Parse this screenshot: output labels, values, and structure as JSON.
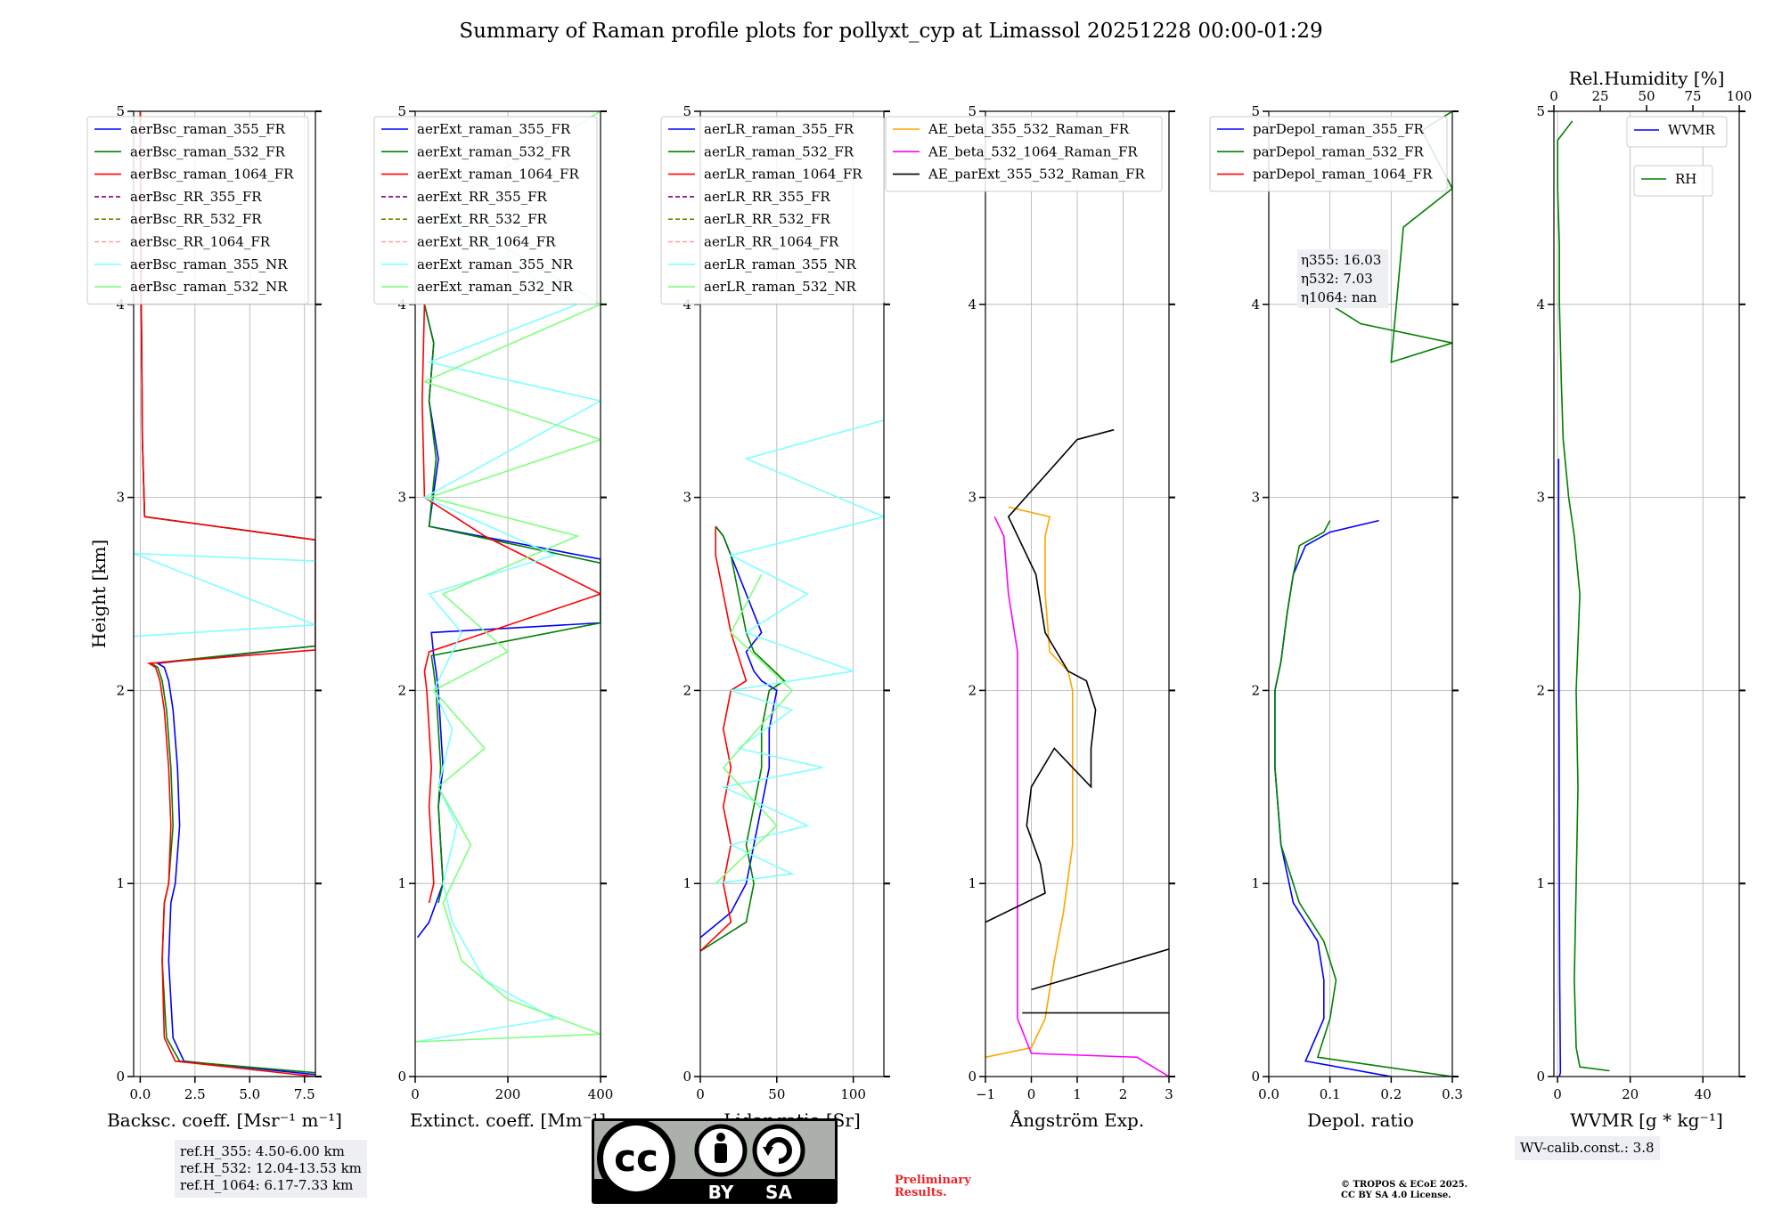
{
  "title": "Summary of Raman profile plots for pollyxt_cyp at Limassol 20251228 00:00-01:29",
  "chart_data": [
    {
      "type": "line",
      "id": "bsc",
      "xlabel": "Backsc. coeff. [Msr⁻¹ m⁻¹]",
      "ylabel": "Height [km]",
      "xlim": [
        -0.3,
        8
      ],
      "ylim": [
        0,
        5
      ],
      "xticks": [
        "0.0",
        "2.5",
        "5.0",
        "7.5"
      ],
      "xtick_values": [
        0,
        2.5,
        5,
        7.5
      ],
      "yticks": [
        "0",
        "1",
        "2",
        "3",
        "4",
        "5"
      ],
      "legend": [
        "aerBsc_raman_355_FR",
        "aerBsc_raman_532_FR",
        "aerBsc_raman_1064_FR",
        "aerBsc_RR_355_FR",
        "aerBsc_RR_532_FR",
        "aerBsc_RR_1064_FR",
        "aerBsc_raman_355_NR",
        "aerBsc_raman_532_NR"
      ],
      "series": [
        {
          "name": "aerBsc_raman_355_FR",
          "x": [
            8,
            2.0,
            1.5,
            1.3,
            1.4,
            1.6,
            1.8,
            1.7,
            1.5,
            1.3,
            1.1,
            0.8,
            8,
            8,
            0.2,
            0.1,
            0.05,
            0.0
          ],
          "y": [
            0.01,
            0.08,
            0.2,
            0.6,
            0.9,
            1.0,
            1.3,
            1.6,
            1.9,
            2.05,
            2.12,
            2.14,
            2.23,
            2.78,
            2.9,
            3.3,
            4.0,
            5.0
          ]
        },
        {
          "name": "aerBsc_raman_532_FR",
          "x": [
            8,
            1.8,
            1.2,
            1.0,
            1.1,
            1.3,
            1.5,
            1.4,
            1.2,
            1.0,
            0.8,
            0.5,
            8,
            8,
            0.2,
            0.1,
            0.05,
            0.0
          ],
          "y": [
            0.02,
            0.08,
            0.2,
            0.6,
            0.9,
            1.0,
            1.3,
            1.6,
            1.9,
            2.05,
            2.12,
            2.14,
            2.23,
            2.78,
            2.9,
            3.3,
            4.0,
            5.0
          ]
        },
        {
          "name": "aerBsc_raman_1064_FR",
          "x": [
            8,
            1.6,
            1.1,
            1.0,
            1.1,
            1.3,
            1.4,
            1.3,
            1.1,
            0.9,
            0.7,
            0.4,
            8,
            8,
            0.2,
            0.1,
            0.05,
            0.0
          ],
          "y": [
            0.0,
            0.08,
            0.2,
            0.6,
            0.9,
            1.0,
            1.3,
            1.6,
            1.9,
            2.05,
            2.12,
            2.14,
            2.21,
            2.78,
            2.9,
            3.3,
            4.0,
            5.0
          ]
        },
        {
          "name": "aerBsc_raman_355_NR",
          "x": [
            8,
            -0.3,
            8,
            -0.3
          ],
          "y": [
            2.67,
            2.71,
            2.34,
            2.28
          ]
        }
      ]
    },
    {
      "type": "line",
      "id": "ext",
      "xlabel": "Extinct. coeff. [Mm⁻¹]",
      "xlim": [
        0,
        400
      ],
      "ylim": [
        0,
        5
      ],
      "xticks": [
        "0",
        "200",
        "400"
      ],
      "xtick_values": [
        0,
        200,
        400
      ],
      "yticks": [
        "0",
        "1",
        "2",
        "3",
        "4",
        "5"
      ],
      "legend": [
        "aerExt_raman_355_FR",
        "aerExt_raman_532_FR",
        "aerExt_raman_1064_FR",
        "aerExt_RR_355_FR",
        "aerExt_RR_532_FR",
        "aerExt_RR_1064_FR",
        "aerExt_raman_355_NR",
        "aerExt_raman_532_NR"
      ],
      "series": [
        {
          "name": "aerExt_raman_355_FR",
          "x": [
            5,
            30,
            60,
            55,
            50,
            60,
            55,
            50,
            45,
            40,
            35,
            400,
            400,
            30,
            50,
            30,
            40,
            20
          ],
          "y": [
            0.72,
            0.8,
            1.0,
            1.2,
            1.4,
            1.6,
            1.8,
            2.0,
            2.1,
            2.18,
            2.3,
            2.35,
            2.68,
            2.85,
            3.2,
            3.5,
            3.8,
            4.0
          ]
        },
        {
          "name": "aerExt_raman_532_FR",
          "x": [
            50,
            60,
            55,
            50,
            55,
            50,
            45,
            40,
            35,
            400,
            400,
            30,
            45,
            30,
            40,
            20
          ],
          "y": [
            0.9,
            1.0,
            1.2,
            1.4,
            1.6,
            1.8,
            2.0,
            2.1,
            2.18,
            2.35,
            2.66,
            2.85,
            3.2,
            3.5,
            3.8,
            4.0
          ]
        },
        {
          "name": "aerExt_raman_1064_FR",
          "x": [
            30,
            40,
            35,
            30,
            35,
            30,
            25,
            20,
            30,
            400,
            150,
            20,
            15,
            20
          ],
          "y": [
            0.9,
            1.0,
            1.2,
            1.4,
            1.6,
            1.8,
            2.0,
            2.1,
            2.2,
            2.5,
            2.8,
            3.0,
            3.5,
            4.0
          ]
        },
        {
          "name": "aerExt_raman_355_NR",
          "x": [
            0,
            300,
            150,
            80,
            60,
            90,
            50,
            80,
            40,
            100,
            30,
            300,
            20,
            400,
            30,
            350,
            20
          ],
          "y": [
            0.18,
            0.3,
            0.5,
            0.8,
            1.0,
            1.3,
            1.5,
            1.8,
            2.0,
            2.3,
            2.5,
            2.7,
            3.0,
            3.5,
            3.7,
            4.0,
            4.5
          ]
        },
        {
          "name": "aerExt_raman_532_NR",
          "x": [
            0,
            400,
            200,
            100,
            60,
            120,
            50,
            150,
            40,
            200,
            60,
            350,
            30,
            400,
            20,
            400,
            50,
            400
          ],
          "y": [
            0.18,
            0.22,
            0.4,
            0.6,
            0.9,
            1.2,
            1.5,
            1.7,
            2.0,
            2.2,
            2.5,
            2.8,
            3.0,
            3.3,
            3.6,
            4.0,
            4.5,
            5.0
          ]
        }
      ]
    },
    {
      "type": "line",
      "id": "lr",
      "xlabel": "Lidar ratio [Sr]",
      "xlim": [
        0,
        120
      ],
      "ylim": [
        0,
        5
      ],
      "xticks": [
        "0",
        "50",
        "100"
      ],
      "xtick_values": [
        0,
        50,
        100
      ],
      "yticks": [
        "0",
        "1",
        "2",
        "3",
        "4",
        "5"
      ],
      "legend": [
        "aerLR_raman_355_FR",
        "aerLR_raman_532_FR",
        "aerLR_raman_1064_FR",
        "aerLR_RR_355_FR",
        "aerLR_RR_532_FR",
        "aerLR_RR_1064_FR",
        "aerLR_raman_355_NR",
        "aerLR_raman_532_NR"
      ],
      "series": [
        {
          "name": "aerLR_raman_355_FR",
          "x": [
            0,
            20,
            30,
            35,
            40,
            45,
            45,
            50,
            40,
            35,
            30,
            40,
            30,
            25,
            20,
            15,
            10
          ],
          "y": [
            0.72,
            0.85,
            1.0,
            1.2,
            1.4,
            1.6,
            1.8,
            2.0,
            2.05,
            2.1,
            2.2,
            2.3,
            2.5,
            2.6,
            2.7,
            2.8,
            2.85
          ]
        },
        {
          "name": "aerLR_raman_532_FR",
          "x": [
            0,
            30,
            35,
            30,
            35,
            40,
            40,
            45,
            55,
            35,
            30,
            25,
            20,
            15,
            10
          ],
          "y": [
            0.65,
            0.8,
            1.0,
            1.2,
            1.4,
            1.6,
            1.8,
            2.0,
            2.05,
            2.2,
            2.3,
            2.5,
            2.7,
            2.8,
            2.85
          ]
        },
        {
          "name": "aerLR_raman_1064_FR",
          "x": [
            0,
            20,
            15,
            20,
            15,
            20,
            15,
            20,
            30,
            20,
            15,
            10,
            10
          ],
          "y": [
            0.65,
            0.8,
            1.0,
            1.2,
            1.4,
            1.6,
            1.8,
            2.0,
            2.05,
            2.3,
            2.5,
            2.7,
            2.85
          ]
        },
        {
          "name": "aerLR_raman_355_NR",
          "x": [
            10,
            60,
            20,
            70,
            15,
            80,
            25,
            60,
            20,
            100,
            30,
            70,
            20,
            120,
            30,
            120
          ],
          "y": [
            1.0,
            1.05,
            1.2,
            1.3,
            1.5,
            1.6,
            1.7,
            1.9,
            2.0,
            2.1,
            2.3,
            2.5,
            2.7,
            2.9,
            3.2,
            3.4
          ]
        },
        {
          "name": "aerLR_raman_532_NR",
          "x": [
            10,
            50,
            15,
            60,
            20,
            40
          ],
          "y": [
            1.0,
            1.3,
            1.6,
            2.0,
            2.3,
            2.6
          ]
        }
      ]
    },
    {
      "type": "line",
      "id": "ae",
      "xlabel": "Ångström Exp.",
      "xlim": [
        -1,
        3
      ],
      "ylim": [
        0,
        5
      ],
      "xticks": [
        "−1",
        "0",
        "1",
        "2",
        "3"
      ],
      "xtick_values": [
        -1,
        0,
        1,
        2,
        3
      ],
      "yticks": [
        "0",
        "1",
        "2",
        "3",
        "4",
        "5"
      ],
      "legend": [
        "AE_beta_355_532_Raman_FR",
        "AE_beta_532_1064_Raman_FR",
        "AE_parExt_355_532_Raman_FR"
      ],
      "series": [
        {
          "name": "AE_beta_355_532_Raman_FR",
          "x": [
            -1,
            0.0,
            0.3,
            0.5,
            0.7,
            0.9,
            0.9,
            0.9,
            0.8,
            0.4,
            0.3,
            0.3,
            0.4,
            -0.5
          ],
          "y": [
            0.1,
            0.15,
            0.3,
            0.6,
            0.85,
            1.2,
            1.6,
            2.0,
            2.1,
            2.2,
            2.5,
            2.8,
            2.9,
            2.95
          ]
        },
        {
          "name": "AE_beta_532_1064_Raman_FR",
          "x": [
            3,
            2.3,
            0.0,
            -0.3,
            -0.3,
            -0.3,
            -0.3,
            -0.3,
            -0.3,
            -0.5,
            -0.6,
            -0.8
          ],
          "y": [
            0.0,
            0.1,
            0.12,
            0.3,
            0.8,
            1.5,
            2.0,
            2.05,
            2.2,
            2.5,
            2.8,
            2.9
          ]
        },
        {
          "name": "AE_parExt_355_532_Raman_FR",
          "x": [
            -1,
            0.3,
            0.2,
            -0.1,
            0.0,
            0.5,
            1.3,
            1.3,
            1.4,
            1.2,
            0.8,
            0.3,
            0.1,
            -0.5,
            1.0,
            1.8
          ],
          "y": [
            0.8,
            0.95,
            1.1,
            1.3,
            1.5,
            1.7,
            1.5,
            1.7,
            1.9,
            2.05,
            2.1,
            2.3,
            2.6,
            2.9,
            3.3,
            3.35
          ]
        },
        {
          "name": "AE_parExt_355_532_Raman_FR",
          "x": [
            -0.2,
            3
          ],
          "y": [
            0.33,
            0.33
          ]
        },
        {
          "name": "AE_parExt_355_532_Raman_FR",
          "x": [
            0.0,
            3
          ],
          "y": [
            0.45,
            0.66
          ]
        }
      ]
    },
    {
      "type": "line",
      "id": "depol",
      "xlabel": "Depol. ratio",
      "xlim": [
        0,
        0.3
      ],
      "ylim": [
        0,
        5
      ],
      "xticks": [
        "0.0",
        "0.1",
        "0.2",
        "0.3"
      ],
      "xtick_values": [
        0,
        0.1,
        0.2,
        0.3
      ],
      "yticks": [
        "0",
        "1",
        "2",
        "3",
        "4",
        "5"
      ],
      "legend": [
        "parDepol_raman_355_FR",
        "parDepol_raman_532_FR",
        "parDepol_raman_1064_FR"
      ],
      "annotation": [
        "η355: 16.03",
        "η532: 7.03",
        "η1064: nan"
      ],
      "series": [
        {
          "name": "parDepol_raman_355_FR",
          "x": [
            0.2,
            0.06,
            0.09,
            0.09,
            0.08,
            0.04,
            0.02,
            0.01,
            0.01,
            0.02,
            0.03,
            0.04,
            0.06,
            0.1,
            0.18
          ],
          "y": [
            0.0,
            0.08,
            0.3,
            0.5,
            0.7,
            0.9,
            1.2,
            1.6,
            2.0,
            2.15,
            2.4,
            2.6,
            2.75,
            2.82,
            2.88
          ]
        },
        {
          "name": "parDepol_raman_532_FR",
          "x": [
            0.3,
            0.08,
            0.1,
            0.11,
            0.09,
            0.05,
            0.02,
            0.01,
            0.01,
            0.02,
            0.03,
            0.04,
            0.05,
            0.09,
            0.1
          ],
          "y": [
            0.0,
            0.1,
            0.3,
            0.5,
            0.7,
            0.9,
            1.2,
            1.6,
            2.0,
            2.15,
            2.4,
            2.6,
            2.75,
            2.82,
            2.88
          ]
        },
        {
          "name": "parDepol_raman_532_FR",
          "x": [
            0.1,
            0.15,
            0.3,
            0.2,
            0.22,
            0.3,
            0.25,
            0.3
          ],
          "y": [
            4.0,
            3.9,
            3.8,
            3.7,
            4.4,
            4.6,
            4.9,
            5.0
          ]
        }
      ]
    },
    {
      "type": "line",
      "id": "wv",
      "xlabel": "WVMR [g * kg⁻¹]",
      "top_xlabel": "Rel.Humidity [%]",
      "xlim": [
        -1,
        50
      ],
      "top_xlim": [
        0,
        100
      ],
      "ylim": [
        0,
        5
      ],
      "xticks": [
        "0",
        "20",
        "40"
      ],
      "xtick_values": [
        0,
        20,
        40
      ],
      "top_xticks": [
        "0",
        "25",
        "50",
        "75",
        "100"
      ],
      "top_xtick_values": [
        0,
        25,
        50,
        75,
        100
      ],
      "yticks": [
        "0",
        "1",
        "2",
        "3",
        "4",
        "5"
      ],
      "legend": [
        "WVMR",
        "RH"
      ],
      "series": [
        {
          "name": "WVMR",
          "x": [
            0.5,
            0.8,
            0.6,
            0.5,
            0.4,
            0.3,
            0.3
          ],
          "y": [
            0.0,
            0.02,
            0.5,
            1.0,
            2.0,
            3.0,
            3.2
          ]
        },
        {
          "name": "RH",
          "x": [
            30,
            14,
            12,
            11,
            12,
            13,
            12,
            14,
            11,
            8,
            5,
            4,
            3,
            3,
            2,
            2,
            10
          ],
          "y": [
            0.03,
            0.05,
            0.15,
            0.5,
            1.0,
            1.5,
            2.0,
            2.5,
            2.8,
            3.0,
            3.3,
            3.6,
            4.0,
            4.3,
            4.6,
            4.85,
            4.95
          ]
        }
      ]
    }
  ],
  "info_boxes": {
    "ref": [
      "ref.H_355: 4.50-6.00 km",
      "ref.H_532: 12.04-13.53 km",
      "ref.H_1064: 6.17-7.33 km"
    ],
    "wv_calib": "WV-calib.const.: 3.8"
  },
  "license_logo": {
    "badge": "cc",
    "by": "BY",
    "sa": "SA"
  },
  "preliminary": [
    "Preliminary",
    "Results."
  ],
  "copyright": [
    "© TROPOS & ECoE 2025.",
    "CC BY SA 4.0 License."
  ],
  "colors": {
    "blue": "#0000ff",
    "green": "#008000",
    "red": "#ff0000",
    "purple": "#800080",
    "olive": "#808000",
    "salmon": "#ffa0a0",
    "cyan": "#7fffff",
    "lightgreen": "#7fff7f",
    "orange": "#ffa500",
    "magenta": "#ff00ff",
    "black": "#000000"
  }
}
